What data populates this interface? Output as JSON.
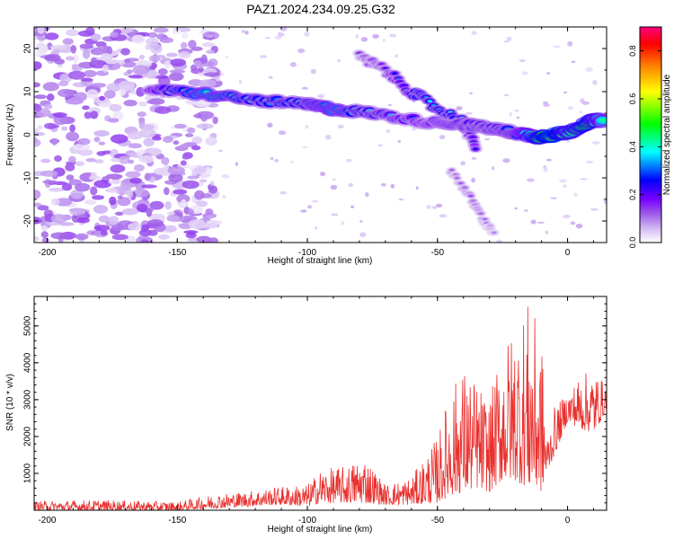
{
  "title": "PAZ1.2024.234.09.25.G32",
  "chart_data": [
    {
      "type": "heatmap",
      "xlabel": "Height of straight line (km)",
      "ylabel": "Frequency (Hz)",
      "xlim": [
        -205,
        15
      ],
      "ylim": [
        -25,
        25
      ],
      "xticks": [
        -200,
        -150,
        -100,
        -50,
        0
      ],
      "yticks": [
        -20,
        -10,
        0,
        10,
        20
      ],
      "colorbar": {
        "label": "Normalized spectral amplitude",
        "range": [
          0.0,
          0.9
        ],
        "ticks": [
          0.0,
          0.2,
          0.4,
          0.6,
          0.8
        ],
        "colormap": [
          "#ffffff",
          "#d6bff4",
          "#a060e8",
          "#7a00ff",
          "#0000ff",
          "#00ffff",
          "#00ff00",
          "#ffff00",
          "#ff8000",
          "#ff0000",
          "#ff0080"
        ]
      },
      "main_feature": {
        "description_points": [
          {
            "x": -160,
            "y": 10.5,
            "v": 0.25
          },
          {
            "x": -140,
            "y": 9.5,
            "v": 0.45
          },
          {
            "x": -120,
            "y": 8.0,
            "v": 0.35
          },
          {
            "x": -100,
            "y": 7.0,
            "v": 0.35
          },
          {
            "x": -90,
            "y": 6.0,
            "v": 0.45
          },
          {
            "x": -75,
            "y": 5.0,
            "v": 0.3
          },
          {
            "x": -55,
            "y": 3.0,
            "v": 0.25
          },
          {
            "x": -40,
            "y": 2.5,
            "v": 0.3
          },
          {
            "x": -30,
            "y": 1.5,
            "v": 0.3
          },
          {
            "x": -20,
            "y": 0.5,
            "v": 0.35
          },
          {
            "x": -12,
            "y": -0.5,
            "v": 0.65
          },
          {
            "x": -5,
            "y": 0.0,
            "v": 0.8
          },
          {
            "x": 0,
            "y": 0.5,
            "v": 0.6
          },
          {
            "x": 8,
            "y": 3.0,
            "v": 0.7
          },
          {
            "x": 14,
            "y": 3.5,
            "v": 0.5
          }
        ],
        "secondary_branch": [
          {
            "x": -80,
            "y": 18,
            "v": 0.15
          },
          {
            "x": -70,
            "y": 15,
            "v": 0.18
          },
          {
            "x": -60,
            "y": 10,
            "v": 0.3
          },
          {
            "x": -50,
            "y": 6,
            "v": 0.35
          },
          {
            "x": -40,
            "y": 3,
            "v": 0.3
          },
          {
            "x": -35,
            "y": -3,
            "v": 0.2
          }
        ],
        "lower_branch": [
          {
            "x": -45,
            "y": -8,
            "v": 0.1
          },
          {
            "x": -38,
            "y": -14,
            "v": 0.12
          },
          {
            "x": -32,
            "y": -20,
            "v": 0.1
          },
          {
            "x": -28,
            "y": -23,
            "v": 0.08
          }
        ]
      }
    },
    {
      "type": "line",
      "xlabel": "Height of straight line (km)",
      "ylabel": "SNR (10 * v/v)",
      "xlim": [
        -205,
        15
      ],
      "ylim": [
        0,
        5800
      ],
      "xticks": [
        -200,
        -150,
        -100,
        -50,
        0
      ],
      "yticks": [
        1000,
        2000,
        3000,
        4000,
        5000
      ],
      "color": "#e8302e",
      "envelope": [
        {
          "x": -205,
          "low": 0,
          "high": 250
        },
        {
          "x": -180,
          "low": 0,
          "high": 280
        },
        {
          "x": -150,
          "low": 0,
          "high": 230
        },
        {
          "x": -135,
          "low": 50,
          "high": 450
        },
        {
          "x": -125,
          "low": 100,
          "high": 500
        },
        {
          "x": -110,
          "low": 150,
          "high": 650
        },
        {
          "x": -100,
          "low": 100,
          "high": 700
        },
        {
          "x": -95,
          "low": 200,
          "high": 1100
        },
        {
          "x": -85,
          "low": 200,
          "high": 1200
        },
        {
          "x": -78,
          "low": 200,
          "high": 1500
        },
        {
          "x": -70,
          "low": 150,
          "high": 700
        },
        {
          "x": -60,
          "low": 150,
          "high": 900
        },
        {
          "x": -50,
          "low": 200,
          "high": 2000
        },
        {
          "x": -45,
          "low": 400,
          "high": 3300
        },
        {
          "x": -40,
          "low": 500,
          "high": 3900
        },
        {
          "x": -35,
          "low": 600,
          "high": 3500
        },
        {
          "x": -30,
          "low": 500,
          "high": 3000
        },
        {
          "x": -25,
          "low": 800,
          "high": 4500
        },
        {
          "x": -20,
          "low": 800,
          "high": 5000
        },
        {
          "x": -15,
          "low": 600,
          "high": 5700
        },
        {
          "x": -10,
          "low": 500,
          "high": 4700
        },
        {
          "x": -8,
          "low": 1000,
          "high": 2000
        },
        {
          "x": -5,
          "low": 1500,
          "high": 2800
        },
        {
          "x": 0,
          "low": 2400,
          "high": 3200
        },
        {
          "x": 5,
          "low": 2200,
          "high": 3700
        },
        {
          "x": 10,
          "low": 2100,
          "high": 3800
        },
        {
          "x": 15,
          "low": 2700,
          "high": 3400
        }
      ]
    }
  ]
}
